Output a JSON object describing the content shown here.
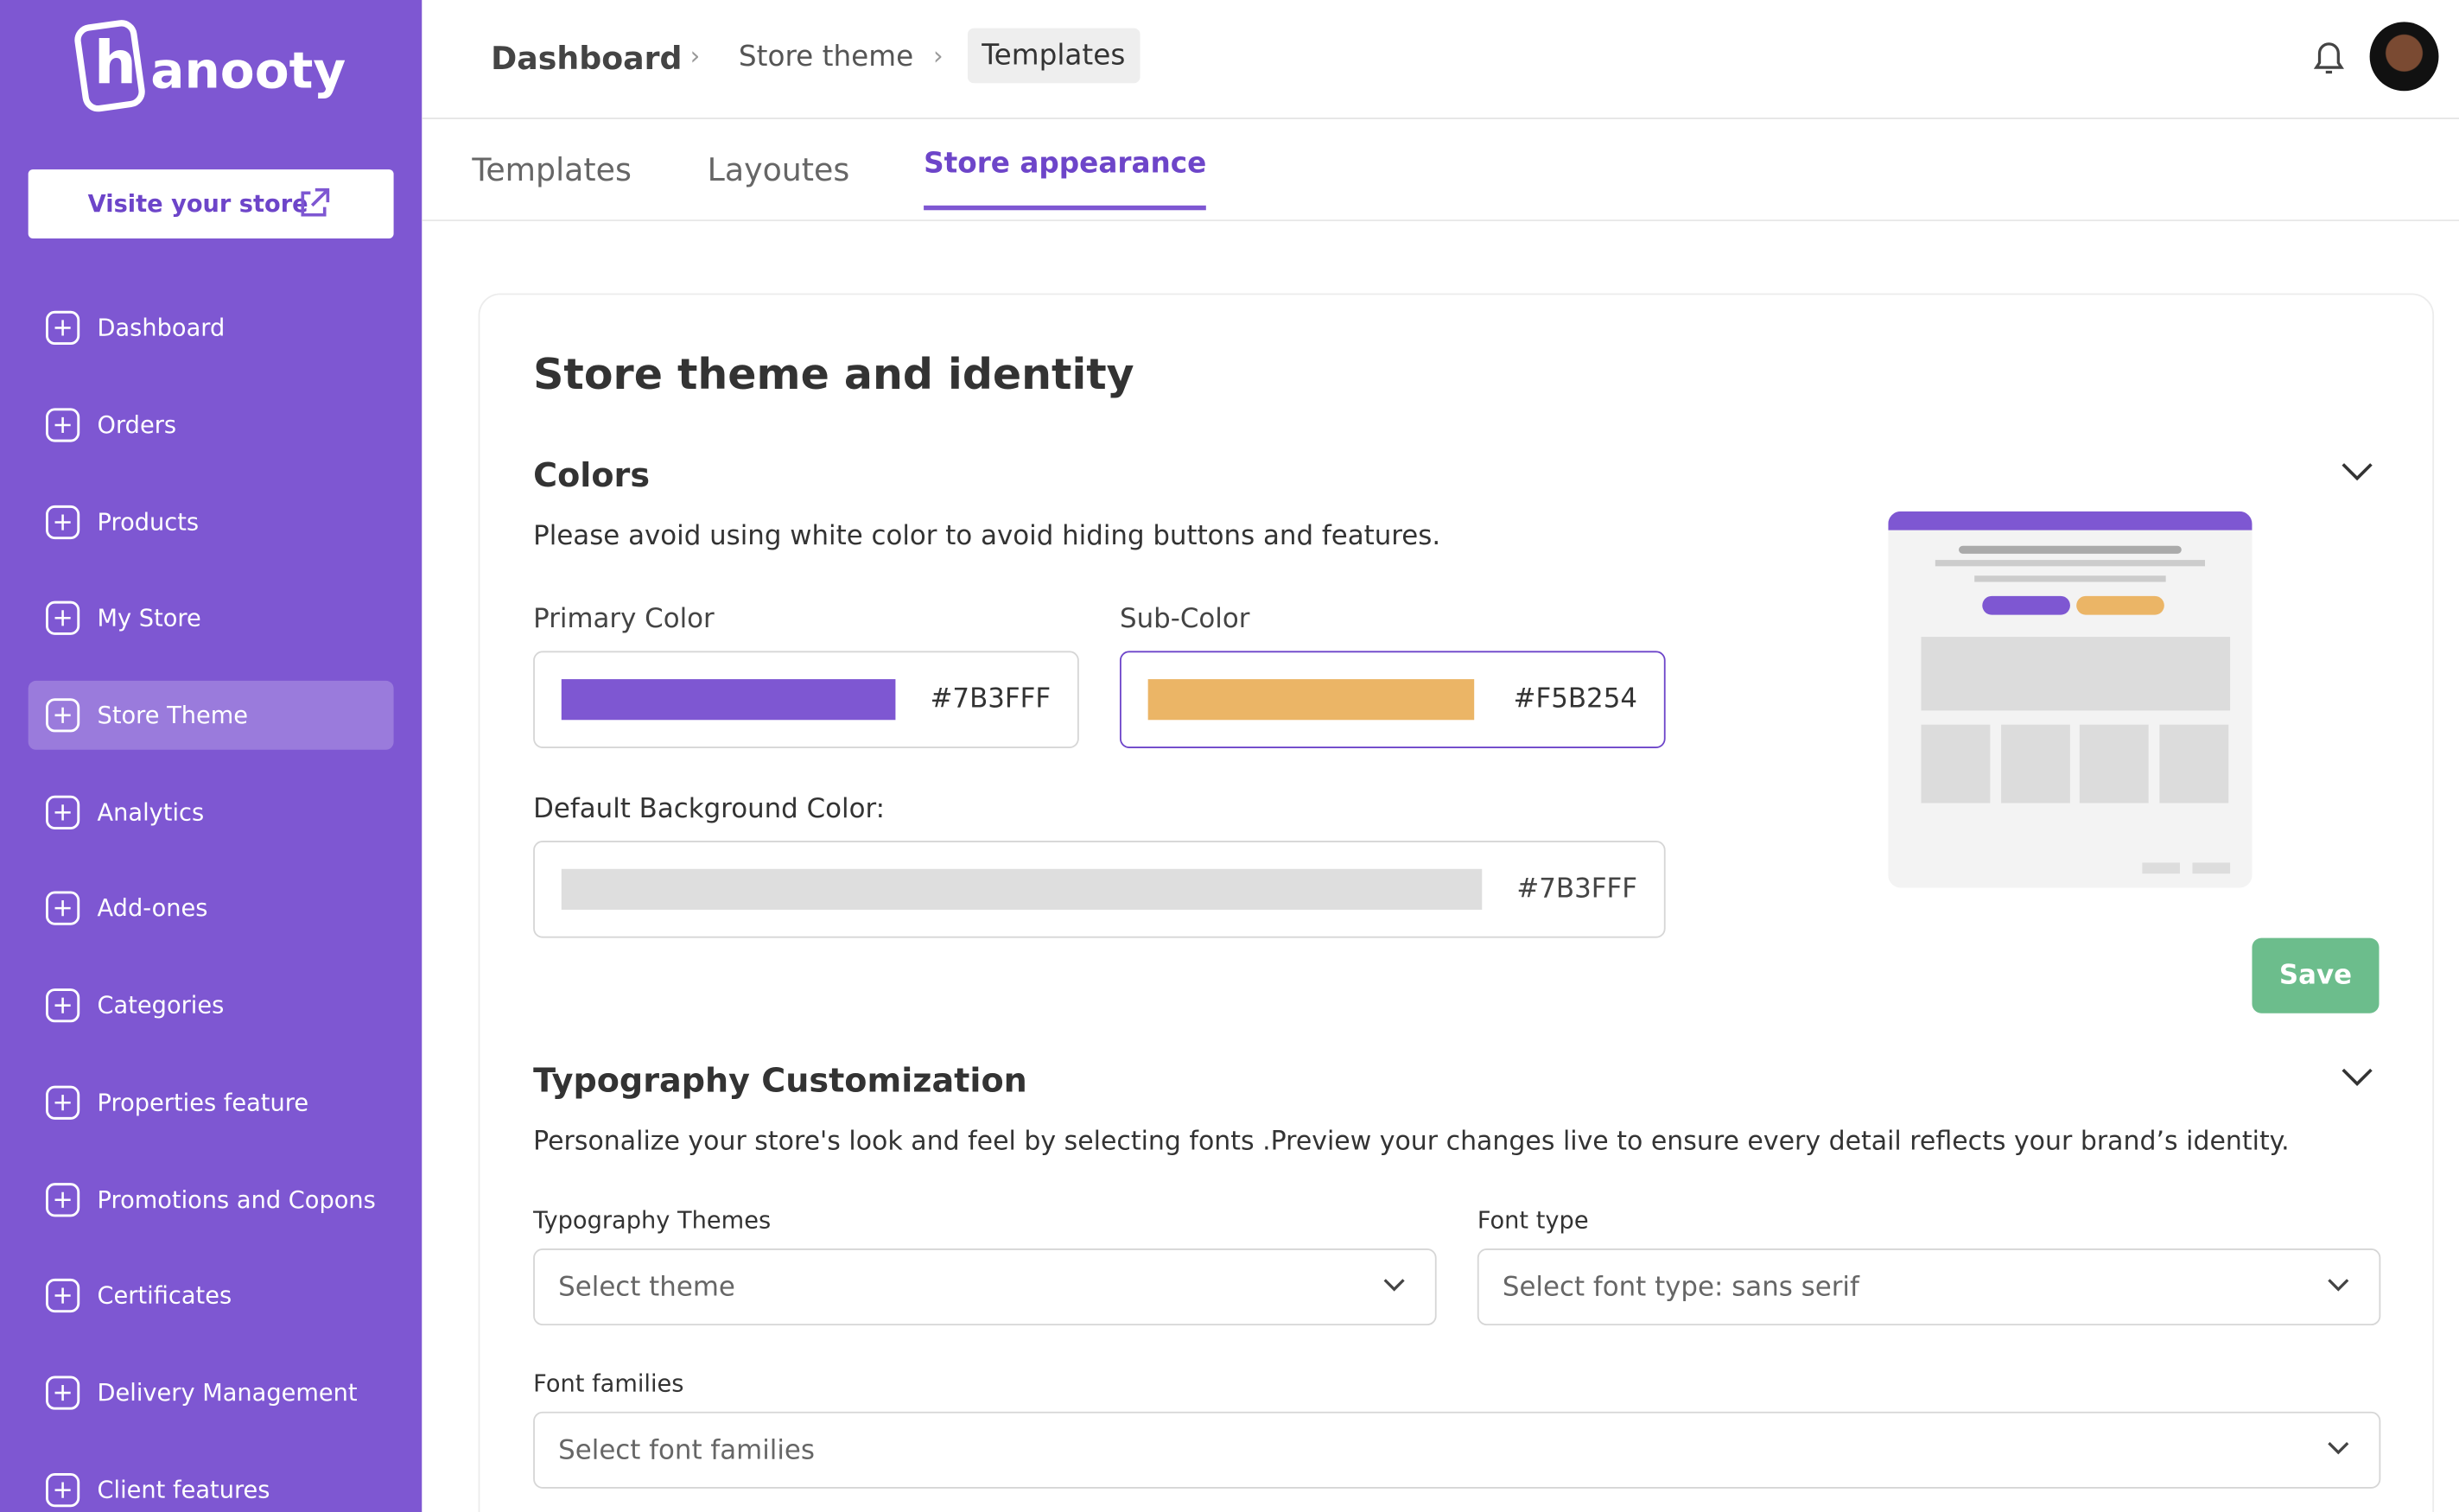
{
  "logo": {
    "mark": "h",
    "text": "anooty"
  },
  "sidebar": {
    "visit_store": "Visite your store",
    "active": 4,
    "items": [
      "Dashboard",
      "Orders",
      "Products",
      "My Store",
      "Store Theme",
      "Analytics",
      "Add-ones",
      "Categories",
      "Properties feature",
      "Promotions and Copons",
      "Certificates",
      "Delivery Management",
      "Client features"
    ]
  },
  "breadcrumb": [
    "Dashboard",
    "Store theme",
    "Templates"
  ],
  "tabs": {
    "items": [
      "Templates",
      "Layoutes",
      "Store appearance"
    ],
    "active": 2
  },
  "card": {
    "title": "Store theme and identity",
    "colors": {
      "title": "Colors",
      "note": "Please avoid using white color to avoid hiding buttons and features.",
      "primary": {
        "label": "Primary Color",
        "value": "#7B3FFF",
        "swatch": "#7e57d2"
      },
      "sub": {
        "label": "Sub-Color",
        "value": "#F5B254",
        "swatch": "#ebb566"
      },
      "background": {
        "label": "Default Background Color:",
        "value": "#7B3FFF",
        "swatch": "#dedede"
      },
      "save": "Save"
    },
    "typography": {
      "title": "Typography Customization",
      "description": "Personalize your store's look and feel by selecting fonts .Preview your changes live to ensure every detail reflects your brand’s identity.",
      "themes": {
        "label": "Typography Themes",
        "placeholder": "Select theme"
      },
      "font_type": {
        "label": "Font type",
        "placeholder": "Select font type: sans serif"
      },
      "families": {
        "label": "Font families",
        "placeholder": "Select font families"
      }
    }
  }
}
